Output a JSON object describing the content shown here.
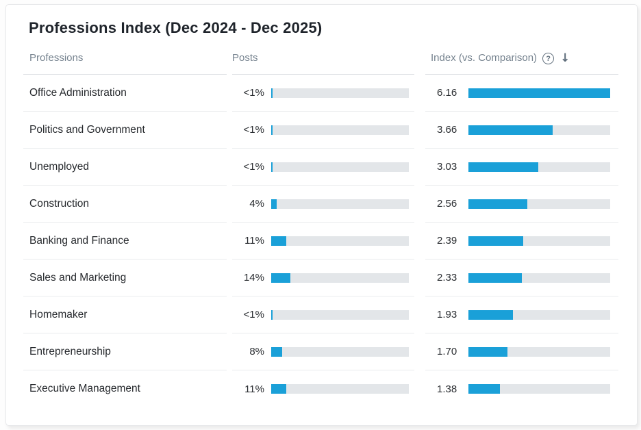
{
  "card": {
    "title": "Professions Index (Dec 2024 - Dec 2025)",
    "columns": {
      "professions": "Professions",
      "posts": "Posts",
      "index": "Index (vs. Comparison)"
    },
    "icons": {
      "help": "?",
      "sort_desc": "↓"
    },
    "colors": {
      "bar_fill": "#1aa0d8",
      "bar_track": "#e3e6e9"
    },
    "index_max": 6.16,
    "rows": [
      {
        "profession": "Office Administration",
        "posts_label": "<1%",
        "posts_pct": 1,
        "index_label": "6.16",
        "index_value": 6.16
      },
      {
        "profession": "Politics and Government",
        "posts_label": "<1%",
        "posts_pct": 1,
        "index_label": "3.66",
        "index_value": 3.66
      },
      {
        "profession": "Unemployed",
        "posts_label": "<1%",
        "posts_pct": 1,
        "index_label": "3.03",
        "index_value": 3.03
      },
      {
        "profession": "Construction",
        "posts_label": "4%",
        "posts_pct": 4,
        "index_label": "2.56",
        "index_value": 2.56
      },
      {
        "profession": "Banking and Finance",
        "posts_label": "11%",
        "posts_pct": 11,
        "index_label": "2.39",
        "index_value": 2.39
      },
      {
        "profession": "Sales and Marketing",
        "posts_label": "14%",
        "posts_pct": 14,
        "index_label": "2.33",
        "index_value": 2.33
      },
      {
        "profession": "Homemaker",
        "posts_label": "<1%",
        "posts_pct": 1,
        "index_label": "1.93",
        "index_value": 1.93
      },
      {
        "profession": "Entrepreneurship",
        "posts_label": "8%",
        "posts_pct": 8,
        "index_label": "1.70",
        "index_value": 1.7
      },
      {
        "profession": "Executive Management",
        "posts_label": "11%",
        "posts_pct": 11,
        "index_label": "1.38",
        "index_value": 1.38
      }
    ]
  },
  "chart_data": {
    "type": "bar",
    "title": "Professions Index (Dec 2024 - Dec 2025)",
    "categories": [
      "Office Administration",
      "Politics and Government",
      "Unemployed",
      "Construction",
      "Banking and Finance",
      "Sales and Marketing",
      "Homemaker",
      "Entrepreneurship",
      "Executive Management"
    ],
    "series": [
      {
        "name": "Posts",
        "values_display": [
          "<1%",
          "<1%",
          "<1%",
          "4%",
          "11%",
          "14%",
          "<1%",
          "8%",
          "11%"
        ],
        "values": [
          1,
          1,
          1,
          4,
          11,
          14,
          1,
          8,
          11
        ],
        "unit": "%",
        "axis_range": [
          0,
          100
        ]
      },
      {
        "name": "Index (vs. Comparison)",
        "values": [
          6.16,
          3.66,
          3.03,
          2.56,
          2.39,
          2.33,
          1.93,
          1.7,
          1.38
        ],
        "axis_range": [
          0,
          6.16
        ]
      }
    ],
    "sort": "Index descending",
    "legend": "none",
    "grid": "off"
  }
}
